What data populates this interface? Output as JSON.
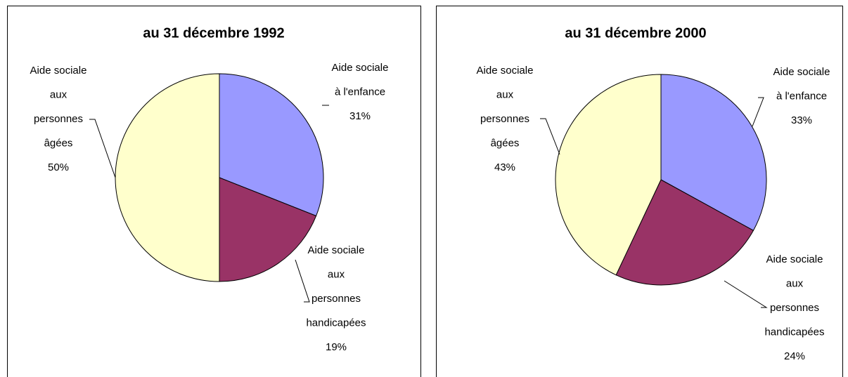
{
  "chart_data": [
    {
      "type": "pie",
      "title": "au 31 décembre 1992",
      "categories": [
        [
          "Aide sociale",
          "à l'enfance"
        ],
        [
          "Aide sociale",
          "aux",
          "personnes",
          "handicapées"
        ],
        [
          "Aide sociale",
          "aux",
          "personnes",
          "âgées"
        ]
      ],
      "values": [
        31,
        19,
        50
      ],
      "value_labels": [
        "31%",
        "19%",
        "50%"
      ],
      "colors": [
        "#9999ff",
        "#993366",
        "#ffffcc"
      ]
    },
    {
      "type": "pie",
      "title": "au 31 décembre 2000",
      "categories": [
        [
          "Aide sociale",
          "à l'enfance"
        ],
        [
          "Aide sociale",
          "aux",
          "personnes",
          "handicapées"
        ],
        [
          "Aide sociale",
          "aux",
          "personnes",
          "âgées"
        ]
      ],
      "values": [
        33,
        24,
        43
      ],
      "value_labels": [
        "33%",
        "24%",
        "43%"
      ],
      "colors": [
        "#9999ff",
        "#993366",
        "#ffffcc"
      ]
    }
  ]
}
